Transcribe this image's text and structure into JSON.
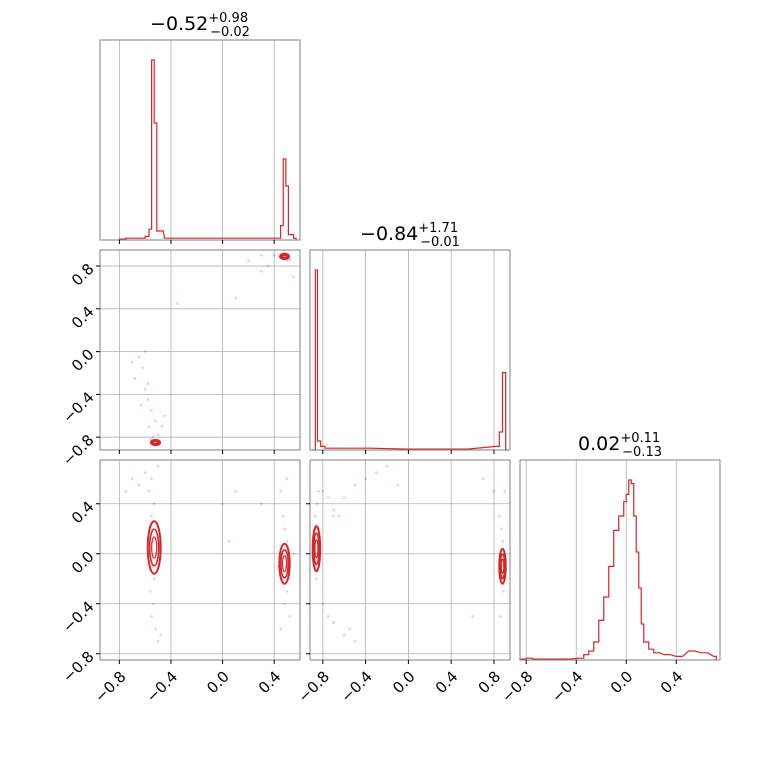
{
  "chart_data": {
    "type": "corner",
    "colors": {
      "series": "#d62728",
      "grid": "#b0b0b0",
      "frame": "#808080"
    },
    "grid": true,
    "titles": [
      {
        "main": "−0.52",
        "up": "+0.98",
        "down": "−0.02"
      },
      {
        "main": "−0.84",
        "up": "+1.71",
        "down": "−0.01"
      },
      {
        "main": "0.02",
        "up": "+0.11",
        "down": "−0.13"
      }
    ],
    "params": [
      {
        "range": [
          -0.95,
          0.6
        ],
        "ticks": [
          -0.8,
          -0.4,
          0.0,
          0.4
        ],
        "tick_labels": [
          "−0.8",
          "−0.4",
          "0.0",
          "0.4"
        ]
      },
      {
        "range": [
          -0.92,
          0.95
        ],
        "ticks": [
          -0.8,
          -0.4,
          0.0,
          0.4,
          0.8
        ],
        "tick_labels": [
          "−0.8",
          "−0.4",
          "0.0",
          "0.4",
          "0.8"
        ]
      },
      {
        "range": [
          -0.85,
          0.75
        ],
        "ticks": [
          -0.8,
          -0.4,
          0.0,
          0.4
        ],
        "tick_labels": [
          "−0.8",
          "−0.4",
          "0.0",
          "0.4"
        ]
      }
    ],
    "histograms": [
      {
        "bins": [
          [
            -0.8,
            0.005
          ],
          [
            -0.75,
            0.01
          ],
          [
            -0.7,
            0.01
          ],
          [
            -0.65,
            0.01
          ],
          [
            -0.6,
            0.02
          ],
          [
            -0.57,
            0.06
          ],
          [
            -0.55,
            1.0
          ],
          [
            -0.53,
            0.65
          ],
          [
            -0.51,
            0.05
          ],
          [
            -0.45,
            0.01
          ],
          [
            0.3,
            0.01
          ],
          [
            0.4,
            0.01
          ],
          [
            0.45,
            0.08
          ],
          [
            0.47,
            0.45
          ],
          [
            0.49,
            0.3
          ],
          [
            0.51,
            0.03
          ],
          [
            0.55,
            0.01
          ]
        ]
      },
      {
        "bins": [
          [
            -0.9,
            0.0
          ],
          [
            -0.87,
            1.0
          ],
          [
            -0.85,
            0.05
          ],
          [
            -0.82,
            0.02
          ],
          [
            -0.78,
            0.01
          ],
          [
            -0.7,
            0.01
          ],
          [
            -0.4,
            0.01
          ],
          [
            0.0,
            0.005
          ],
          [
            0.5,
            0.005
          ],
          [
            0.82,
            0.02
          ],
          [
            0.85,
            0.1
          ],
          [
            0.88,
            0.43
          ],
          [
            0.91,
            0.0
          ]
        ]
      },
      {
        "bins": [
          [
            -0.85,
            0.005
          ],
          [
            -0.8,
            0.01
          ],
          [
            -0.75,
            0.005
          ],
          [
            -0.5,
            0.005
          ],
          [
            -0.38,
            0.01
          ],
          [
            -0.34,
            0.03
          ],
          [
            -0.3,
            0.05
          ],
          [
            -0.26,
            0.1
          ],
          [
            -0.22,
            0.22
          ],
          [
            -0.18,
            0.35
          ],
          [
            -0.14,
            0.52
          ],
          [
            -0.1,
            0.72
          ],
          [
            -0.06,
            0.8
          ],
          [
            -0.02,
            0.88
          ],
          [
            0.0,
            0.92
          ],
          [
            0.02,
            1.0
          ],
          [
            0.04,
            0.98
          ],
          [
            0.06,
            0.8
          ],
          [
            0.08,
            0.6
          ],
          [
            0.1,
            0.4
          ],
          [
            0.12,
            0.2
          ],
          [
            0.14,
            0.1
          ],
          [
            0.18,
            0.06
          ],
          [
            0.22,
            0.04
          ],
          [
            0.3,
            0.03
          ],
          [
            0.4,
            0.02
          ],
          [
            0.5,
            0.05
          ],
          [
            0.6,
            0.04
          ],
          [
            0.7,
            0.02
          ]
        ]
      }
    ],
    "pairs": [
      {
        "row": 1,
        "col": 0,
        "points": [
          [
            -0.65,
            -0.05
          ],
          [
            -0.62,
            -0.15
          ],
          [
            -0.68,
            -0.25
          ],
          [
            -0.6,
            -0.35
          ],
          [
            -0.58,
            -0.45
          ],
          [
            -0.55,
            -0.55
          ],
          [
            -0.63,
            -0.5
          ],
          [
            -0.52,
            -0.65
          ],
          [
            -0.57,
            -0.7
          ],
          [
            -0.5,
            -0.78
          ],
          [
            -0.54,
            -0.8
          ],
          [
            -0.56,
            -0.82
          ],
          [
            -0.53,
            -0.84
          ],
          [
            -0.51,
            -0.85
          ],
          [
            -0.55,
            -0.85
          ],
          [
            -0.49,
            -0.87
          ],
          [
            -0.52,
            -0.86
          ],
          [
            -0.47,
            -0.7
          ],
          [
            -0.45,
            -0.6
          ],
          [
            -0.6,
            0.0
          ],
          [
            -0.7,
            -0.1
          ],
          [
            -0.58,
            -0.3
          ],
          [
            0.4,
            0.9
          ],
          [
            0.45,
            0.88
          ],
          [
            0.5,
            0.85
          ],
          [
            0.35,
            0.8
          ],
          [
            0.48,
            0.92
          ],
          [
            0.52,
            0.86
          ],
          [
            0.55,
            0.7
          ],
          [
            0.3,
            0.75
          ],
          [
            0.47,
            0.89
          ],
          [
            0.46,
            0.87
          ],
          [
            -0.35,
            0.45
          ],
          [
            0.1,
            0.5
          ],
          [
            0.2,
            0.85
          ],
          [
            0.3,
            0.9
          ]
        ],
        "contours": [
          {
            "cx": -0.52,
            "cy": -0.85,
            "rx": 0.035,
            "ry": 0.025
          },
          {
            "cx": 0.48,
            "cy": 0.89,
            "rx": 0.035,
            "ry": 0.025
          }
        ]
      },
      {
        "row": 2,
        "col": 0,
        "points": [
          [
            -0.55,
            0.6
          ],
          [
            -0.57,
            0.5
          ],
          [
            -0.53,
            0.4
          ],
          [
            -0.55,
            0.3
          ],
          [
            -0.56,
            0.2
          ],
          [
            -0.54,
            0.1
          ],
          [
            -0.52,
            0.0
          ],
          [
            -0.55,
            -0.1
          ],
          [
            -0.53,
            -0.2
          ],
          [
            -0.56,
            -0.3
          ],
          [
            -0.54,
            -0.4
          ],
          [
            -0.55,
            -0.5
          ],
          [
            -0.52,
            -0.6
          ],
          [
            -0.6,
            0.65
          ],
          [
            -0.65,
            0.55
          ],
          [
            -0.7,
            0.6
          ],
          [
            -0.75,
            0.5
          ],
          [
            -0.5,
            0.7
          ],
          [
            -0.48,
            -0.65
          ],
          [
            -0.5,
            -0.7
          ],
          [
            0.47,
            0.3
          ],
          [
            0.48,
            0.2
          ],
          [
            0.5,
            0.1
          ],
          [
            0.46,
            0.0
          ],
          [
            0.49,
            -0.1
          ],
          [
            0.47,
            -0.2
          ],
          [
            0.5,
            -0.3
          ],
          [
            0.48,
            -0.4
          ],
          [
            0.52,
            -0.5
          ],
          [
            0.45,
            -0.6
          ],
          [
            0.55,
            0.0
          ],
          [
            0.43,
            -0.1
          ],
          [
            0.5,
            0.6
          ],
          [
            0.45,
            0.5
          ],
          [
            0.0,
            0.4
          ],
          [
            0.05,
            0.1
          ],
          [
            0.1,
            0.5
          ],
          [
            0.3,
            0.4
          ]
        ],
        "contours": [
          {
            "cx": -0.53,
            "cy": 0.05,
            "rx": 0.05,
            "ry": 0.21
          },
          {
            "cx": 0.48,
            "cy": -0.08,
            "rx": 0.04,
            "ry": 0.16
          }
        ]
      },
      {
        "row": 2,
        "col": 1,
        "points": [
          [
            -0.87,
            0.3
          ],
          [
            -0.86,
            0.2
          ],
          [
            -0.88,
            0.1
          ],
          [
            -0.85,
            0.0
          ],
          [
            -0.87,
            -0.1
          ],
          [
            -0.86,
            -0.2
          ],
          [
            -0.85,
            0.4
          ],
          [
            -0.84,
            0.5
          ],
          [
            -0.8,
            0.5
          ],
          [
            -0.75,
            0.45
          ],
          [
            -0.7,
            0.35
          ],
          [
            -0.65,
            0.3
          ],
          [
            -0.7,
            0.3
          ],
          [
            -0.6,
            0.45
          ],
          [
            -0.5,
            0.55
          ],
          [
            -0.4,
            0.6
          ],
          [
            -0.3,
            0.65
          ],
          [
            -0.2,
            0.7
          ],
          [
            -0.1,
            0.55
          ],
          [
            -0.8,
            -0.4
          ],
          [
            -0.75,
            -0.5
          ],
          [
            -0.7,
            -0.55
          ],
          [
            -0.6,
            -0.65
          ],
          [
            -0.5,
            -0.7
          ],
          [
            -0.55,
            -0.6
          ],
          [
            0.85,
            0.3
          ],
          [
            0.87,
            0.2
          ],
          [
            0.88,
            0.1
          ],
          [
            0.86,
            0.0
          ],
          [
            0.87,
            -0.1
          ],
          [
            0.88,
            -0.2
          ],
          [
            0.89,
            -0.3
          ],
          [
            0.86,
            -0.5
          ],
          [
            0.9,
            0.5
          ],
          [
            0.8,
            0.5
          ],
          [
            0.6,
            -0.5
          ],
          [
            0.7,
            0.6
          ]
        ],
        "contours": [
          {
            "cx": -0.86,
            "cy": 0.04,
            "rx": 0.035,
            "ry": 0.18
          },
          {
            "cx": 0.88,
            "cy": -0.1,
            "rx": 0.03,
            "ry": 0.14
          }
        ]
      }
    ]
  }
}
